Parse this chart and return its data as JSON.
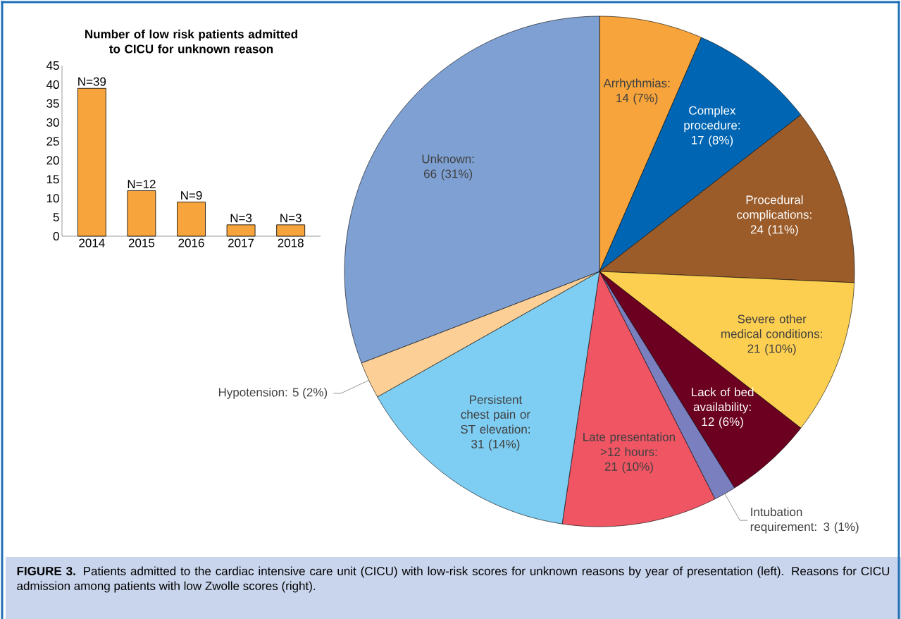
{
  "chart_data": [
    {
      "type": "bar",
      "title": "Number of low risk patients admitted to CICU for unknown reason",
      "categories": [
        "2014",
        "2015",
        "2016",
        "2017",
        "2018"
      ],
      "values": [
        39,
        12,
        9,
        3,
        3
      ],
      "value_labels": [
        "N=39",
        "N=12",
        "N=9",
        "N=3",
        "N=3"
      ],
      "color": "#f6a43b",
      "ylim": [
        0,
        45
      ],
      "yticks": [
        0,
        5,
        10,
        15,
        20,
        25,
        30,
        35,
        40,
        45
      ]
    },
    {
      "type": "pie",
      "categories": [
        "Arrhythmias: 14 (7%)",
        "Complex procedure: 17 (8%)",
        "Procedural complications: 24 (11%)",
        "Severe other medical conditions: 21 (10%)",
        "Lack of bed availability: 12 (6%)",
        "Intubation requirement: 3 (1%)",
        "Late presentation >12 hours: 21 (10%)",
        "Persistent chest pain or ST elevation: 31 (14%)",
        "Hypotension: 5 (2%)",
        "Unknown: 66 (31%)"
      ],
      "values": [
        14,
        17,
        24,
        21,
        12,
        3,
        21,
        31,
        5,
        66
      ],
      "colors": [
        "#f6a43b",
        "#0066b3",
        "#9b5c2a",
        "#fdcf50",
        "#6b0020",
        "#7a7fc0",
        "#ef5563",
        "#7ecdf2",
        "#fbcf95",
        "#7ea0d3"
      ],
      "annotations": [
        "**FIGURE 3.** Patients admitted to the cardiac intensive care unit (CICU) with low-risk scores for unknown reasons by year of presentation (left). Reasons for CICU admission among patients with low Zwolle scores (right)."
      ]
    }
  ]
}
